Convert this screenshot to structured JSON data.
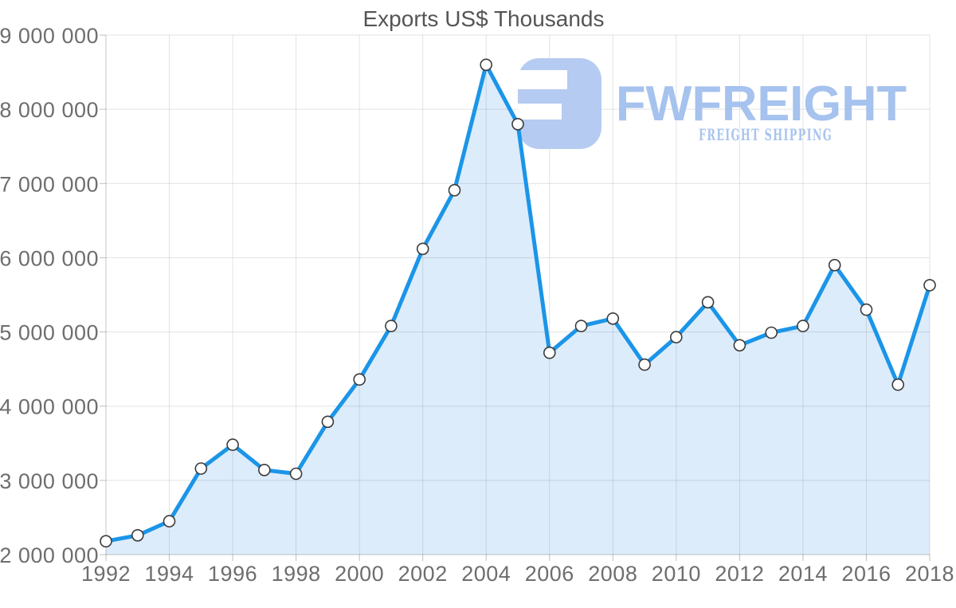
{
  "chart_data": {
    "type": "area",
    "title": "Exports US$ Thousands",
    "xlabel": "",
    "ylabel": "",
    "legend": "none",
    "grid": "on",
    "xlim": [
      1992,
      2018
    ],
    "ylim": [
      2000000,
      9000000
    ],
    "x": [
      1992,
      1993,
      1994,
      1995,
      1996,
      1997,
      1998,
      1999,
      2000,
      2001,
      2002,
      2003,
      2004,
      2005,
      2006,
      2007,
      2008,
      2009,
      2010,
      2011,
      2012,
      2013,
      2014,
      2015,
      2016,
      2017,
      2018
    ],
    "values": [
      2180000,
      2260000,
      2450000,
      3160000,
      3480000,
      3140000,
      3090000,
      3790000,
      4360000,
      5080000,
      6120000,
      6910000,
      8600000,
      7800000,
      4720000,
      5080000,
      5180000,
      4560000,
      4930000,
      5400000,
      4820000,
      4990000,
      5080000,
      5900000,
      5300000,
      4290000,
      5630000
    ],
    "x_ticks": [
      1992,
      1994,
      1996,
      1998,
      2000,
      2002,
      2004,
      2006,
      2008,
      2010,
      2012,
      2014,
      2016,
      2018
    ],
    "y_ticks": [
      {
        "value": 9000000,
        "label": "9 000 000"
      },
      {
        "value": 8000000,
        "label": "8 000 000"
      },
      {
        "value": 7000000,
        "label": "7 000 000"
      },
      {
        "value": 6000000,
        "label": "6 000 000"
      },
      {
        "value": 5000000,
        "label": "5 000 000"
      },
      {
        "value": 4000000,
        "label": "4 000 000"
      },
      {
        "value": 3000000,
        "label": "3 000 000"
      },
      {
        "value": 2000000,
        "label": "2 000 000"
      }
    ]
  },
  "watermark": {
    "brand": "FWFREIGHT",
    "slogan": "FREIGHT SHIPPING"
  },
  "colors": {
    "line": "#1b95e8",
    "area_fill": "#ddecfb",
    "marker_fill": "#ffffff",
    "marker_stroke": "#3c3c3c",
    "gridline": "#000000",
    "axis_text": "#6e6e6e",
    "title_text": "#555555",
    "brand_mark": "#b5cbf1",
    "brand_text": "#a6c2ee",
    "brand_slogan_text": "#a9c4ef"
  }
}
